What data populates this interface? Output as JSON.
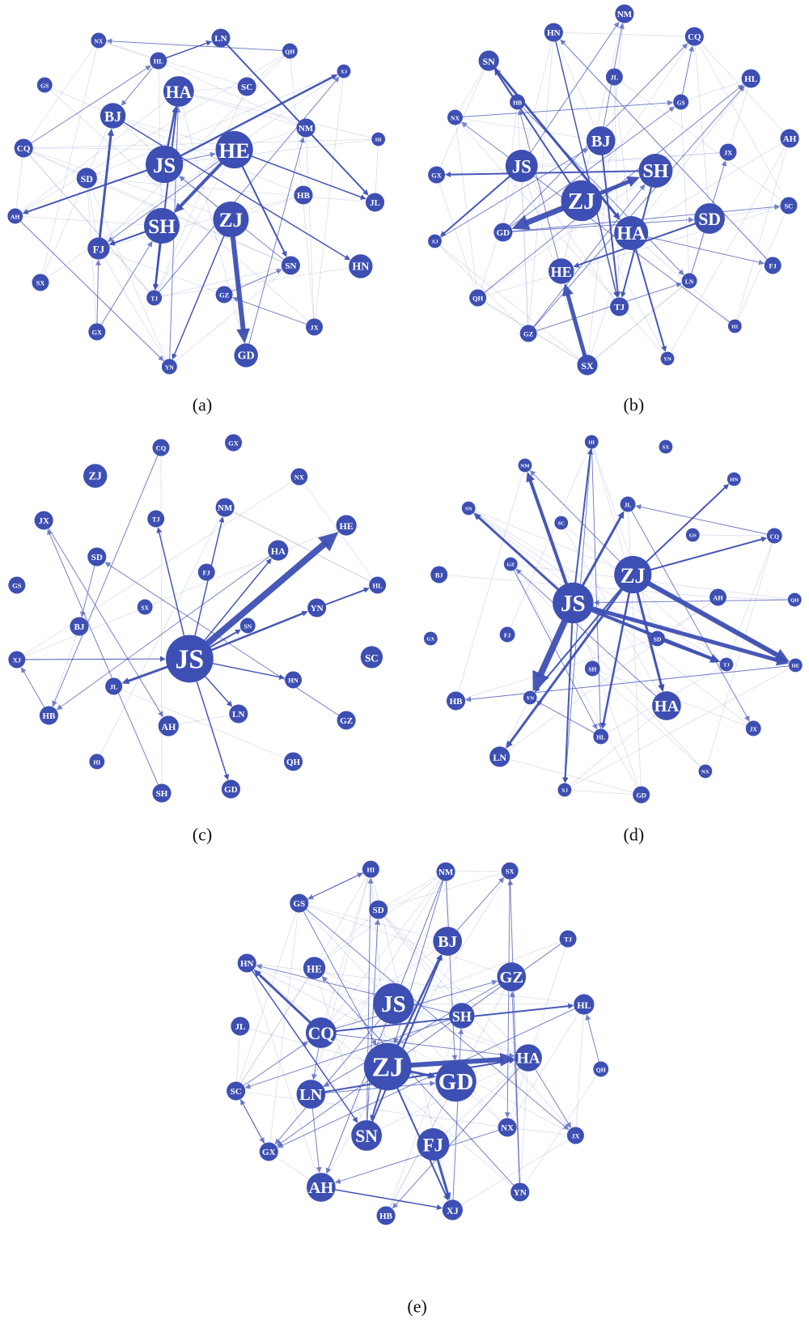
{
  "panels": [
    {
      "caption": "(a)",
      "nodes": [
        "HL",
        "LN",
        "QH",
        "NX",
        "GS",
        "XJ",
        "HA",
        "SC",
        "BJ",
        "CQ",
        "JS",
        "HE",
        "NM",
        "HI",
        "SD",
        "HB",
        "JL",
        "AH",
        "SH",
        "ZJ",
        "FJ",
        "SN",
        "HN",
        "SX",
        "TJ",
        "GZ",
        "JX",
        "GX",
        "GD",
        "YN"
      ]
    },
    {
      "caption": "(b)",
      "nodes": [
        "NM",
        "HN",
        "CQ",
        "SN",
        "JL",
        "HL",
        "HB",
        "GS",
        "NX",
        "BJ",
        "AH",
        "JX",
        "JS",
        "SH",
        "GX",
        "ZJ",
        "SC",
        "SD",
        "XJ",
        "GD",
        "HA",
        "FJ",
        "HE",
        "LN",
        "QH",
        "TJ",
        "HI",
        "GZ",
        "YN",
        "SX"
      ]
    },
    {
      "caption": "(c)",
      "nodes": [
        "CQ",
        "GX",
        "ZJ",
        "NX",
        "JX",
        "TJ",
        "NM",
        "HE",
        "SD",
        "HA",
        "FJ",
        "HL",
        "GS",
        "SX",
        "BJ",
        "SN",
        "YN",
        "XJ",
        "JS",
        "SC",
        "JL",
        "HN",
        "HB",
        "LN",
        "AH",
        "GZ",
        "HI",
        "QH",
        "SH",
        "GD"
      ]
    },
    {
      "caption": "(d)",
      "nodes": [
        "HI",
        "SX",
        "NM",
        "HN",
        "JL",
        "SN",
        "SC",
        "GS",
        "CQ",
        "GZ",
        "ZJ",
        "BJ",
        "AH",
        "QH",
        "JS",
        "GX",
        "FJ",
        "SD",
        "TJ",
        "HE",
        "SH",
        "HA",
        "YN",
        "HB",
        "JX",
        "HL",
        "LN",
        "NX",
        "XJ",
        "GD"
      ]
    },
    {
      "caption": "(e)",
      "nodes": [
        "HI",
        "NM",
        "SX",
        "GS",
        "SD",
        "BJ",
        "TJ",
        "HN",
        "HE",
        "GZ",
        "JS",
        "SH",
        "HL",
        "JL",
        "CQ",
        "ZJ",
        "GD",
        "HA",
        "QH",
        "SC",
        "LN",
        "SN",
        "NX",
        "JX",
        "FJ",
        "GX",
        "AH",
        "YN",
        "HB",
        "XJ"
      ]
    }
  ]
}
